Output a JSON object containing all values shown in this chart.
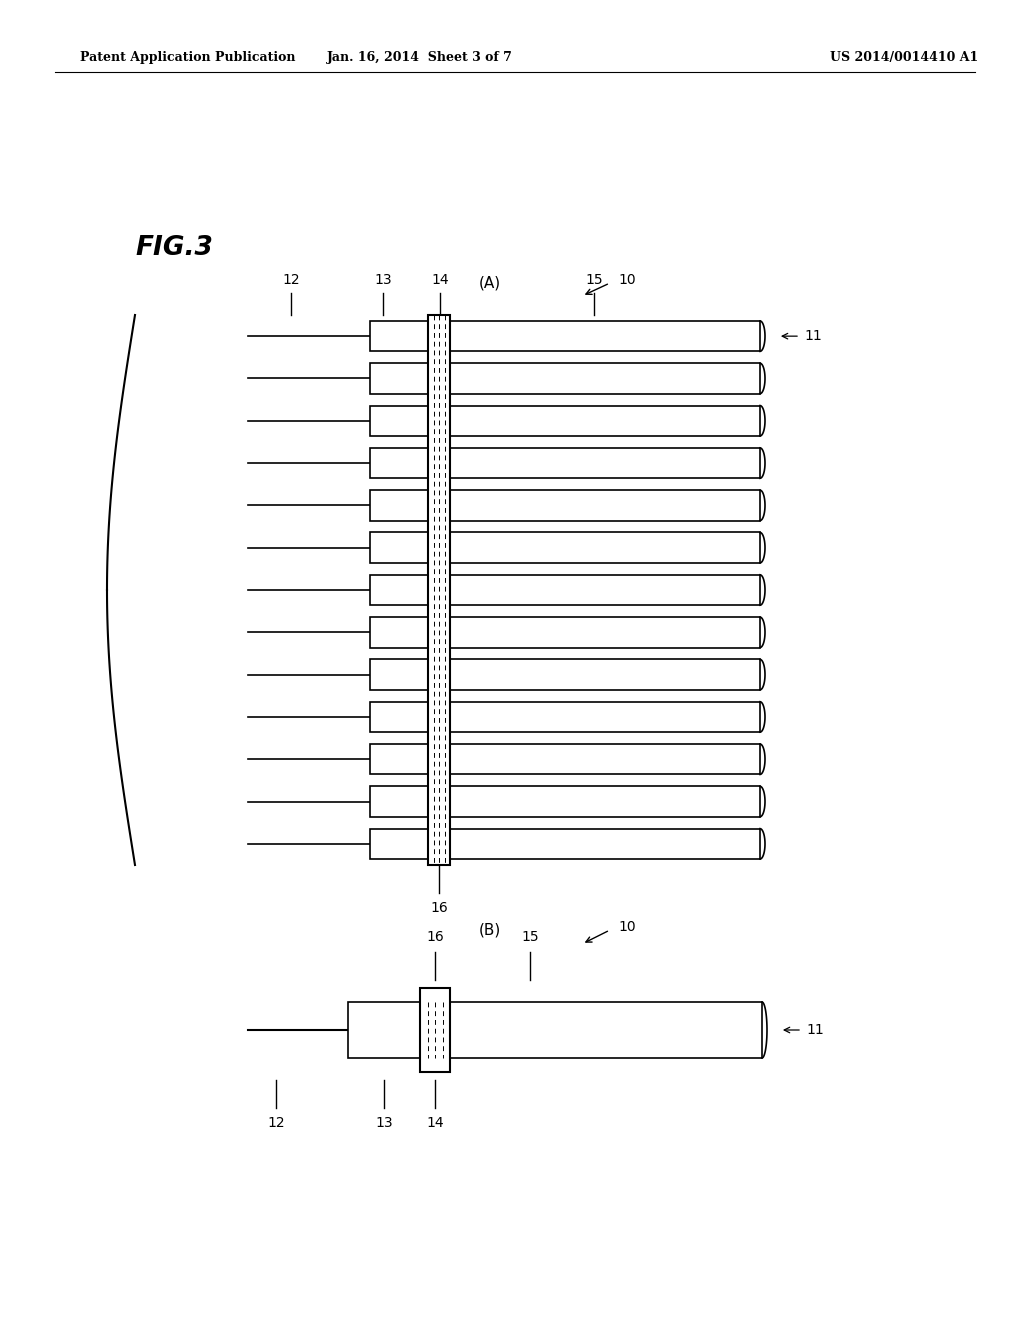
{
  "bg_color": "#ffffff",
  "header_left": "Patent Application Publication",
  "header_mid": "Jan. 16, 2014  Sheet 3 of 7",
  "header_right": "US 2014/0014410 A1",
  "fig_label": "FIG.3",
  "num_wires": 13,
  "label_fontsize": 10,
  "header_fontsize": 9
}
